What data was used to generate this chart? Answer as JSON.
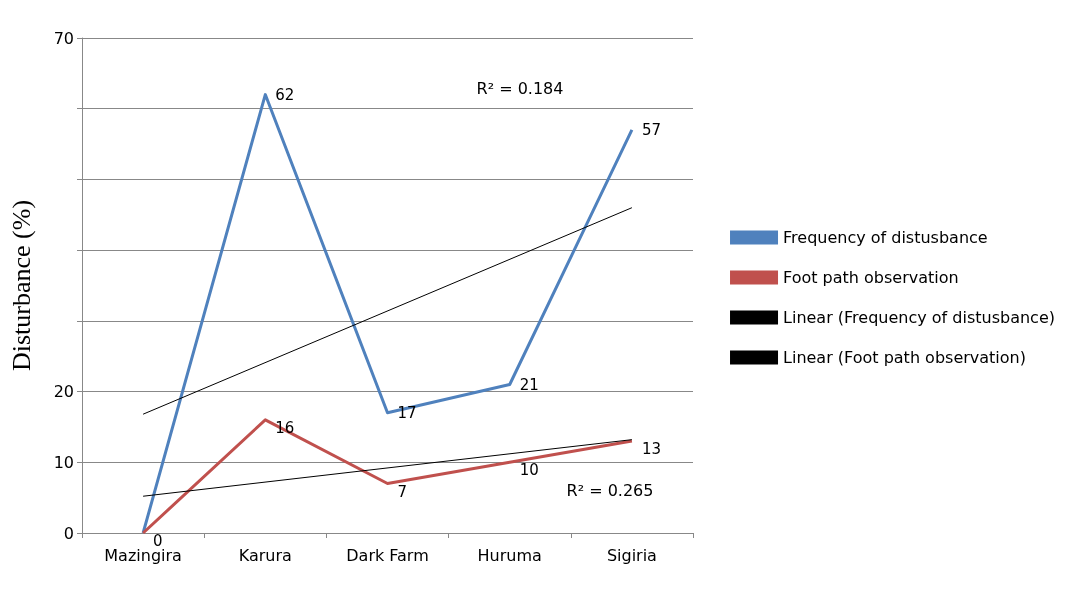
{
  "chart_data": {
    "type": "line",
    "ylabel": "Disturbance (%)",
    "categories": [
      "Mazingira",
      "Karura",
      "Dark Farm",
      "Huruma",
      "Sigiria"
    ],
    "series": [
      {
        "name": "Frequency of distusbance",
        "color": "#4f81bd",
        "values": [
          0,
          62,
          17,
          21,
          57
        ],
        "value_labels": [
          null,
          "62",
          "17",
          "21",
          "57"
        ]
      },
      {
        "name": "Foot path observation",
        "color": "#c0504d",
        "values": [
          0,
          16,
          7,
          10,
          13
        ],
        "value_labels": [
          "0",
          "16",
          "7",
          "10",
          "13"
        ]
      },
      {
        "name": "Linear (Frequency of distusbance)",
        "color": "#000000",
        "x": [
          "Mazingira",
          "Sigiria"
        ],
        "values": [
          16.8,
          46
        ]
      },
      {
        "name": "Linear (Foot path observation)",
        "color": "#000000",
        "x": [
          "Mazingira",
          "Sigiria"
        ],
        "values": [
          5.2,
          13.2
        ]
      }
    ],
    "ylim": [
      0,
      70
    ],
    "yticks": [
      0,
      10,
      20,
      {
        "value": 30,
        "label": null
      },
      {
        "value": 40,
        "label": null
      },
      {
        "value": 50,
        "label": null
      },
      {
        "value": 60,
        "label": null
      },
      70
    ],
    "grid": "y",
    "legend": "right",
    "marker": "none",
    "line_style": "solid",
    "annotations": [
      "R² = 0.184",
      "R² = 0.265"
    ]
  }
}
